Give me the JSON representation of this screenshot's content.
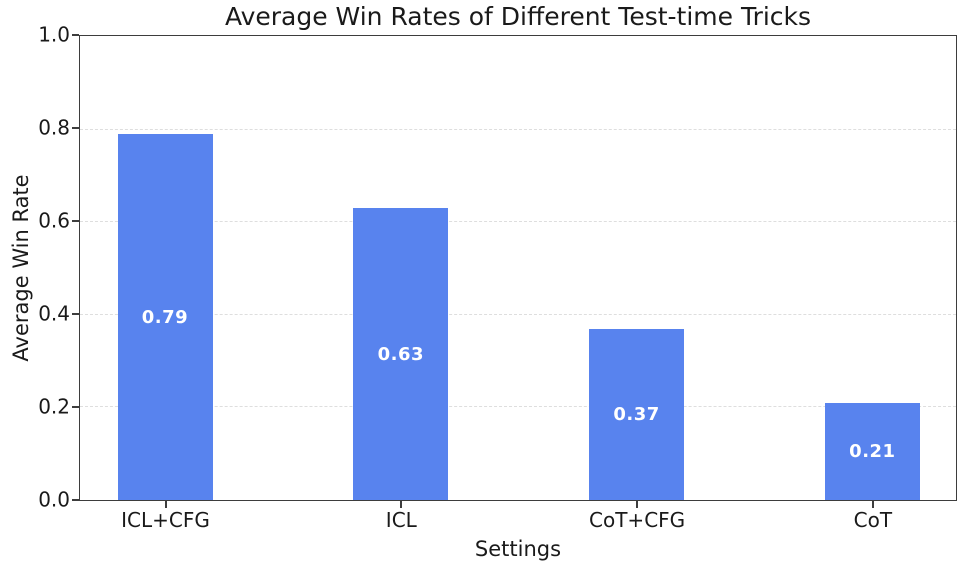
{
  "chart_data": {
    "type": "bar",
    "title": "Average Win Rates of Different Test-time Tricks",
    "xlabel": "Settings",
    "ylabel": "Average Win Rate",
    "categories": [
      "ICL+CFG",
      "ICL",
      "CoT+CFG",
      "CoT"
    ],
    "values": [
      0.79,
      0.63,
      0.37,
      0.21
    ],
    "value_labels": [
      "0.79",
      "0.63",
      "0.37",
      "0.21"
    ],
    "ylim": [
      0.0,
      1.0
    ],
    "yticks": [
      "0.0",
      "0.2",
      "0.4",
      "0.6",
      "0.8",
      "1.0"
    ],
    "grid": "horizontal-dashed",
    "legend": "none",
    "bar_color": "#5883ee",
    "bar_label_color": "#ffffff",
    "grid_color": "#dedede",
    "spine_color": "#3d3d3d",
    "text_color": "#1a1a1a"
  }
}
